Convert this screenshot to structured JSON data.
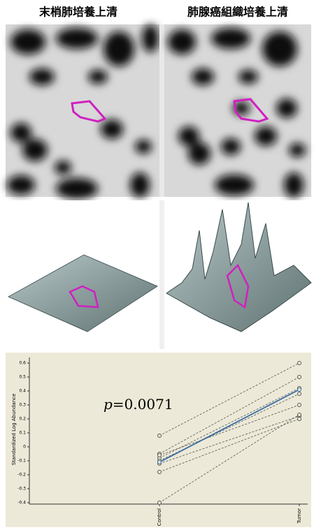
{
  "header": {
    "left_title": "末梢肺培養上清",
    "right_title": "肺腺癌組織培養上清"
  },
  "chart_data": {
    "type": "line",
    "y_label": "Standardized Log Abundance",
    "annotation_italic": "p",
    "annotation": "=0.0071",
    "categories": [
      "Control",
      "Tumor"
    ],
    "ylim": [
      -0.41,
      0.64
    ],
    "yticks": [
      0.6,
      0.5,
      0.4,
      0.3,
      0.2,
      0.1,
      0,
      -0.1,
      -0.2,
      -0.3,
      -0.4
    ],
    "series": [
      {
        "color": "#555555",
        "dashed": true,
        "values": [
          0.08,
          0.6
        ]
      },
      {
        "color": "#555555",
        "dashed": true,
        "values": [
          -0.05,
          0.5
        ]
      },
      {
        "color": "#555555",
        "dashed": true,
        "values": [
          -0.08,
          0.42
        ]
      },
      {
        "color": "#555555",
        "dashed": true,
        "values": [
          -0.1,
          0.38
        ]
      },
      {
        "color": "#555555",
        "dashed": true,
        "values": [
          -0.12,
          0.22
        ]
      },
      {
        "color": "#555555",
        "dashed": true,
        "values": [
          -0.18,
          0.2
        ]
      },
      {
        "color": "#555555",
        "dashed": true,
        "values": [
          -0.4,
          0.23
        ]
      },
      {
        "color": "#555555",
        "dashed": true,
        "values": [
          -0.06,
          0.3
        ]
      },
      {
        "color": "#3a6ea5",
        "dashed": false,
        "values": [
          -0.11,
          0.41
        ]
      }
    ]
  }
}
